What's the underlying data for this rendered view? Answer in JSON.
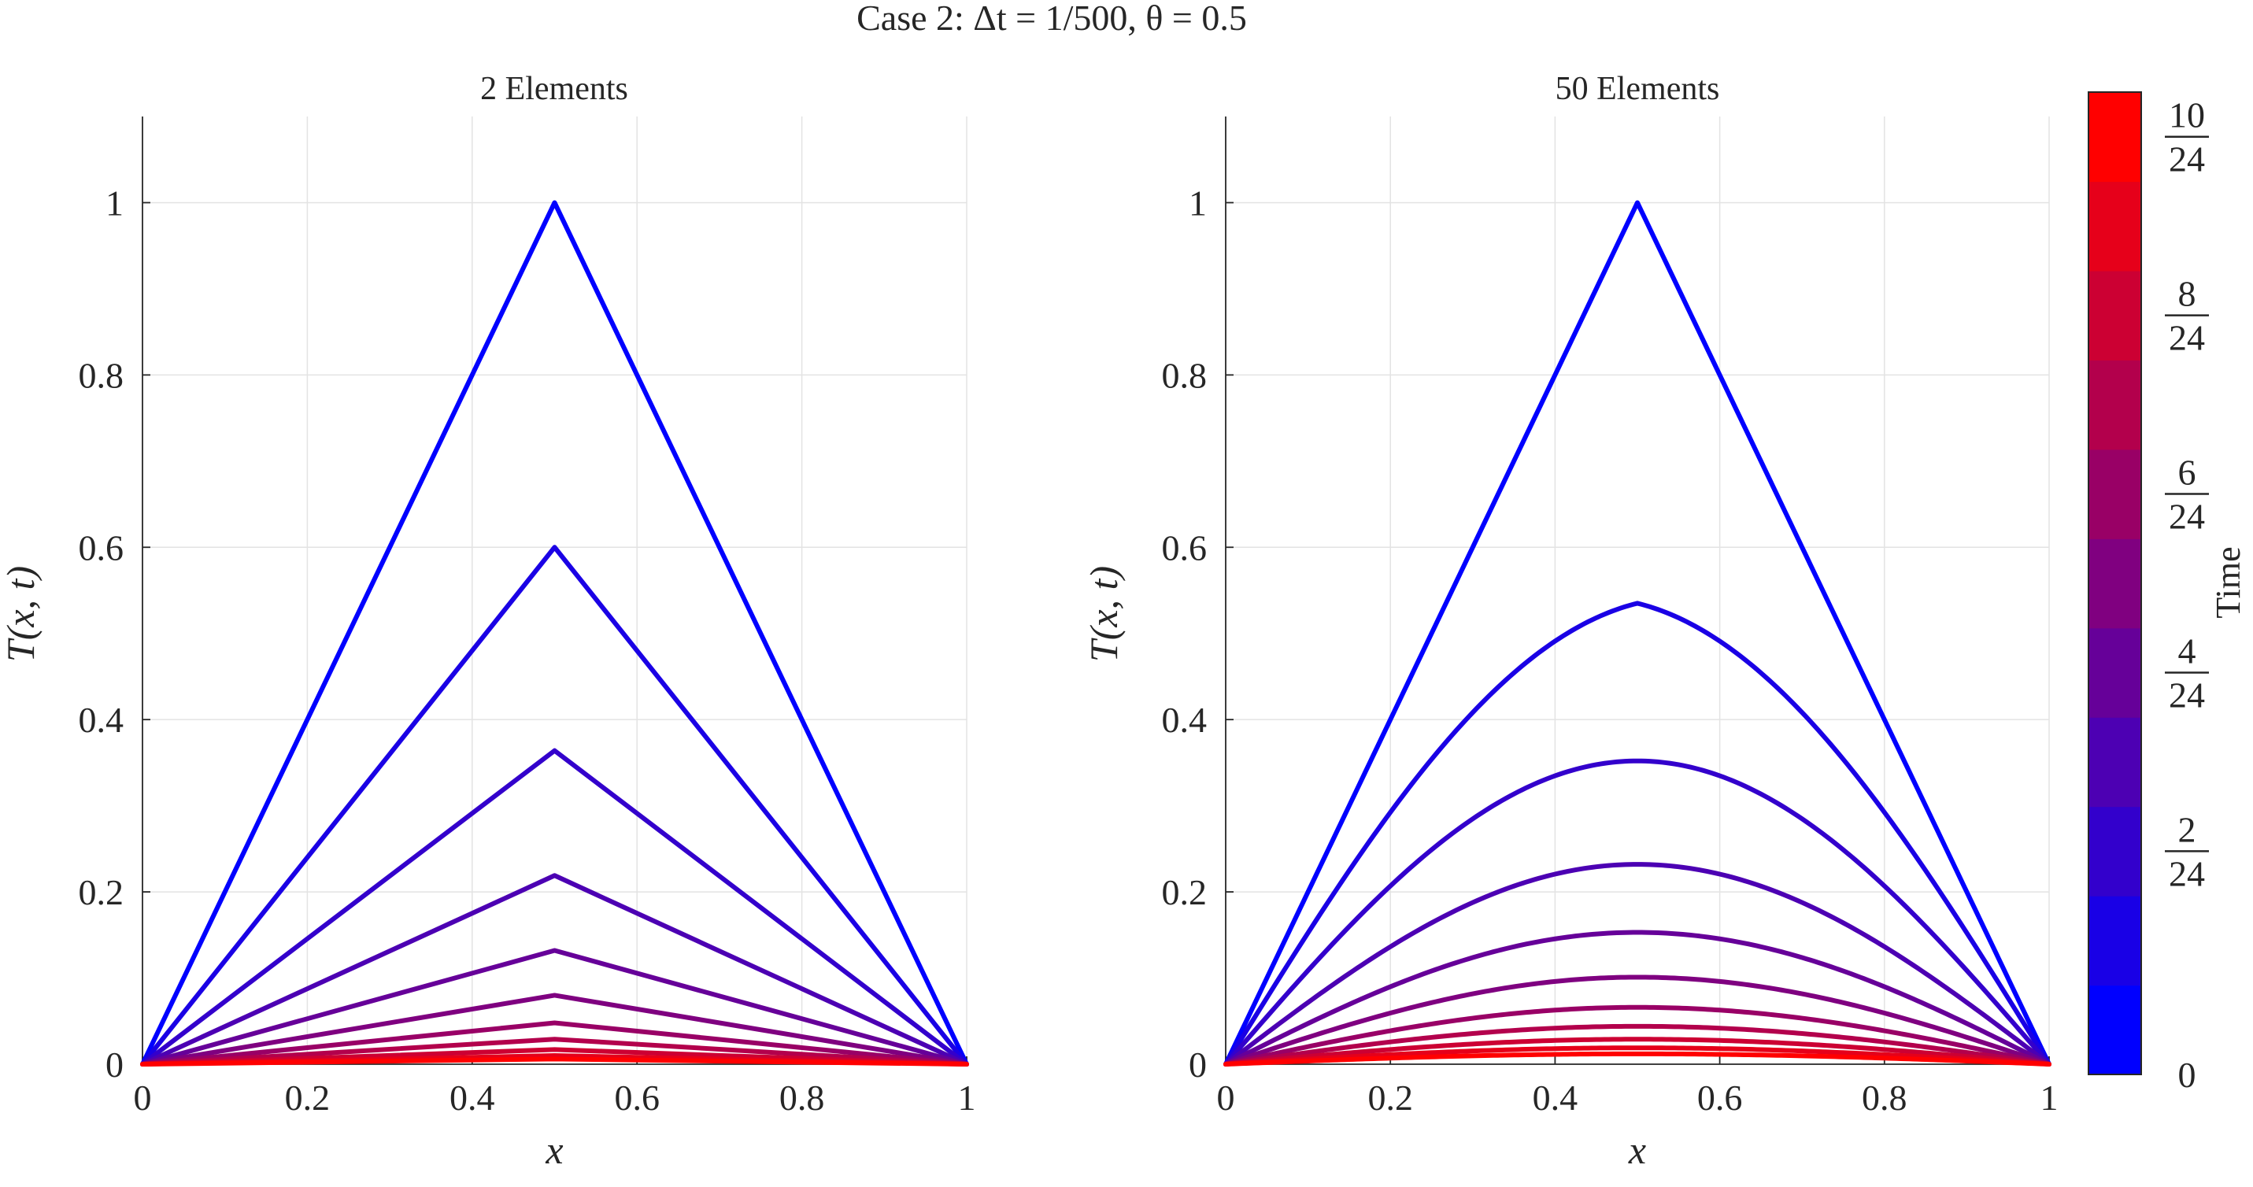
{
  "figure": {
    "suptitle": "Case 2: Δt = 1/500, θ = 0.5",
    "colorbar": {
      "label": "Time",
      "tick_labels": [
        {
          "value": 0,
          "text": "0"
        },
        {
          "value": 0.08333,
          "num": "2",
          "den": "24"
        },
        {
          "value": 0.16667,
          "num": "4",
          "den": "24"
        },
        {
          "value": 0.25,
          "num": "6",
          "den": "24"
        },
        {
          "value": 0.33333,
          "num": "8",
          "den": "24"
        },
        {
          "value": 0.41667,
          "num": "10",
          "den": "24"
        }
      ],
      "range": [
        0,
        0.41667
      ],
      "levels": 11,
      "colormap": [
        "#0000ff",
        "#ff0000"
      ]
    }
  },
  "chart_data": [
    {
      "type": "line",
      "title": "2 Elements",
      "xlabel": "x",
      "ylabel": "T(x, t)",
      "xlim": [
        0,
        1
      ],
      "ylim": [
        0,
        1.1
      ],
      "xticks": [
        0,
        0.2,
        0.4,
        0.6,
        0.8,
        1
      ],
      "xtick_labels": [
        "0",
        "0.2",
        "0.4",
        "0.6",
        "0.8",
        "1"
      ],
      "yticks": [
        0,
        0.2,
        0.4,
        0.6,
        0.8,
        1
      ],
      "ytick_labels": [
        "0",
        "0.2",
        "0.4",
        "0.6",
        "0.8",
        "1"
      ],
      "grid": true,
      "profile": "piecewise-linear",
      "x": [
        0,
        0.5,
        1
      ],
      "series": [
        {
          "time": 0.0,
          "values": [
            0,
            1.0,
            0
          ]
        },
        {
          "time": 0.04167,
          "values": [
            0,
            0.6,
            0
          ]
        },
        {
          "time": 0.08333,
          "values": [
            0,
            0.364,
            0
          ]
        },
        {
          "time": 0.125,
          "values": [
            0,
            0.219,
            0
          ]
        },
        {
          "time": 0.16667,
          "values": [
            0,
            0.132,
            0
          ]
        },
        {
          "time": 0.20833,
          "values": [
            0,
            0.08,
            0
          ]
        },
        {
          "time": 0.25,
          "values": [
            0,
            0.048,
            0
          ]
        },
        {
          "time": 0.29167,
          "values": [
            0,
            0.029,
            0
          ]
        },
        {
          "time": 0.33333,
          "values": [
            0,
            0.017,
            0
          ]
        },
        {
          "time": 0.375,
          "values": [
            0,
            0.01,
            0
          ]
        },
        {
          "time": 0.41667,
          "values": [
            0,
            0.006,
            0
          ]
        }
      ]
    },
    {
      "type": "line",
      "title": "50 Elements",
      "xlabel": "x",
      "ylabel": "T(x, t)",
      "xlim": [
        0,
        1
      ],
      "ylim": [
        0,
        1.1
      ],
      "xticks": [
        0,
        0.2,
        0.4,
        0.6,
        0.8,
        1
      ],
      "xtick_labels": [
        "0",
        "0.2",
        "0.4",
        "0.6",
        "0.8",
        "1"
      ],
      "yticks": [
        0,
        0.2,
        0.4,
        0.6,
        0.8,
        1
      ],
      "ytick_labels": [
        "0",
        "0.2",
        "0.4",
        "0.6",
        "0.8",
        "1"
      ],
      "grid": true,
      "profile": "smooth",
      "series": [
        {
          "time": 0.0,
          "shape": "triangle",
          "peak": 1.0
        },
        {
          "time": 0.04167,
          "shape": "rounded-peak",
          "peak": 0.535
        },
        {
          "time": 0.08333,
          "shape": "sine",
          "peak": 0.352
        },
        {
          "time": 0.125,
          "shape": "sine",
          "peak": 0.232
        },
        {
          "time": 0.16667,
          "shape": "sine",
          "peak": 0.153
        },
        {
          "time": 0.20833,
          "shape": "sine",
          "peak": 0.101
        },
        {
          "time": 0.25,
          "shape": "sine",
          "peak": 0.066
        },
        {
          "time": 0.29167,
          "shape": "sine",
          "peak": 0.044
        },
        {
          "time": 0.33333,
          "shape": "sine",
          "peak": 0.029
        },
        {
          "time": 0.375,
          "shape": "sine",
          "peak": 0.019
        },
        {
          "time": 0.41667,
          "shape": "sine",
          "peak": 0.012
        }
      ]
    }
  ]
}
